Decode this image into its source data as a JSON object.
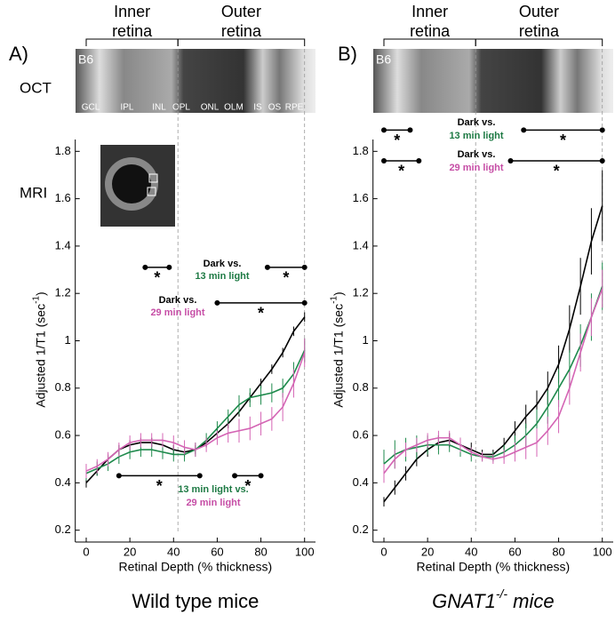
{
  "chart_data": [
    {
      "type": "line",
      "panel": "A)",
      "image_label": "B6",
      "region_labels": [
        [
          "Inner",
          "retina"
        ],
        [
          "Outer",
          "retina"
        ]
      ],
      "layer_labels": [
        "GCL",
        "IPL",
        "INL",
        "OPL",
        "ONL",
        "OLM",
        "IS",
        "OS",
        "RPE"
      ],
      "x_label": "Retinal Depth (% thickness)",
      "y_label": "Adjusted 1/T1 (sec",
      "y_label_sup": "-1",
      "y_label_end": ")",
      "title": "Wild type mice",
      "xlim": [
        -5,
        105
      ],
      "ylim": [
        0.15,
        1.85
      ],
      "xticks": [
        0,
        20,
        40,
        60,
        80,
        100
      ],
      "yticks": [
        0.2,
        0.4,
        0.6,
        0.8,
        1.0,
        1.2,
        1.4,
        1.6,
        1.8
      ],
      "dashed_lines": [
        42,
        100
      ],
      "x": [
        0,
        5,
        10,
        15,
        20,
        25,
        30,
        35,
        40,
        45,
        50,
        55,
        60,
        65,
        70,
        75,
        80,
        85,
        90,
        95,
        100
      ],
      "series": [
        {
          "name": "Dark",
          "color": "#000000",
          "values": [
            0.4,
            0.45,
            0.5,
            0.54,
            0.56,
            0.57,
            0.57,
            0.56,
            0.54,
            0.53,
            0.54,
            0.57,
            0.61,
            0.65,
            0.7,
            0.76,
            0.82,
            0.88,
            0.95,
            1.04,
            1.1
          ],
          "errors": [
            0.02,
            0.02,
            0.02,
            0.02,
            0.02,
            0.02,
            0.02,
            0.02,
            0.02,
            0.02,
            0.02,
            0.02,
            0.02,
            0.02,
            0.02,
            0.02,
            0.02,
            0.02,
            0.02,
            0.02,
            0.02
          ]
        },
        {
          "name": "13 min light",
          "color": "#1e8a4c",
          "values": [
            0.44,
            0.46,
            0.48,
            0.51,
            0.53,
            0.54,
            0.54,
            0.53,
            0.52,
            0.52,
            0.54,
            0.58,
            0.63,
            0.68,
            0.73,
            0.76,
            0.77,
            0.78,
            0.8,
            0.86,
            0.96
          ],
          "errors": [
            0.03,
            0.03,
            0.03,
            0.03,
            0.03,
            0.03,
            0.03,
            0.03,
            0.03,
            0.03,
            0.03,
            0.03,
            0.03,
            0.03,
            0.04,
            0.04,
            0.04,
            0.04,
            0.04,
            0.05,
            0.05
          ]
        },
        {
          "name": "29 min light",
          "color": "#d464b4",
          "values": [
            0.45,
            0.47,
            0.5,
            0.54,
            0.57,
            0.58,
            0.58,
            0.58,
            0.57,
            0.55,
            0.54,
            0.56,
            0.59,
            0.61,
            0.62,
            0.63,
            0.65,
            0.67,
            0.72,
            0.82,
            0.95
          ],
          "errors": [
            0.03,
            0.03,
            0.03,
            0.03,
            0.03,
            0.03,
            0.03,
            0.03,
            0.03,
            0.03,
            0.03,
            0.03,
            0.03,
            0.04,
            0.05,
            0.05,
            0.05,
            0.05,
            0.06,
            0.06,
            0.06
          ]
        }
      ],
      "brackets": [
        {
          "x": [
            27,
            38
          ],
          "y": 1.31,
          "label": "*"
        },
        {
          "x": [
            83,
            100
          ],
          "y": 1.31,
          "label": "*"
        },
        {
          "x": [
            60,
            100
          ],
          "y": 1.16,
          "label": "*"
        },
        {
          "x": [
            15,
            52
          ],
          "y": 0.43,
          "label": "*"
        },
        {
          "x": [
            68,
            80
          ],
          "y": 0.43,
          "label": "*"
        }
      ],
      "annotations": [
        {
          "lines": [
            "Dark vs.",
            "13 min light"
          ],
          "colors": [
            "#000000",
            "#1e7a44"
          ]
        },
        {
          "lines": [
            "Dark vs.",
            "29 min light"
          ],
          "colors": [
            "#000000",
            "#c64ea6"
          ]
        },
        {
          "lines": [
            "13 min light vs.",
            "29 min light"
          ],
          "colors": [
            "#1e7a44",
            "#c64ea6"
          ]
        }
      ]
    },
    {
      "type": "line",
      "panel": "B)",
      "image_label": "B6",
      "region_labels": [
        [
          "Inner",
          "retina"
        ],
        [
          "Outer",
          "retina"
        ]
      ],
      "x_label": "Retinal Depth (% thickness)",
      "y_label": "Adjusted 1/T1 (sec",
      "y_label_sup": "-1",
      "y_label_end": ")",
      "title": "GNAT1",
      "title_sup": "-/-",
      "title_end": " mice",
      "xlim": [
        -5,
        105
      ],
      "ylim": [
        0.15,
        1.85
      ],
      "xticks": [
        0,
        20,
        40,
        60,
        80,
        100
      ],
      "yticks": [
        0.2,
        0.4,
        0.6,
        0.8,
        1.0,
        1.2,
        1.4,
        1.6,
        1.8
      ],
      "dashed_lines": [
        42,
        100
      ],
      "x": [
        0,
        5,
        10,
        15,
        20,
        25,
        30,
        35,
        40,
        45,
        50,
        55,
        60,
        65,
        70,
        75,
        80,
        85,
        90,
        95,
        100
      ],
      "series": [
        {
          "name": "Dark",
          "color": "#000000",
          "values": [
            0.32,
            0.38,
            0.44,
            0.5,
            0.54,
            0.57,
            0.58,
            0.56,
            0.54,
            0.52,
            0.52,
            0.56,
            0.62,
            0.68,
            0.73,
            0.8,
            0.9,
            1.05,
            1.23,
            1.42,
            1.57
          ],
          "errors": [
            0.02,
            0.03,
            0.03,
            0.03,
            0.03,
            0.03,
            0.03,
            0.03,
            0.03,
            0.02,
            0.02,
            0.03,
            0.04,
            0.05,
            0.06,
            0.07,
            0.08,
            0.1,
            0.12,
            0.14,
            0.15
          ]
        },
        {
          "name": "13 min light",
          "color": "#1e8a4c",
          "values": [
            0.48,
            0.52,
            0.54,
            0.55,
            0.56,
            0.56,
            0.56,
            0.54,
            0.52,
            0.51,
            0.51,
            0.53,
            0.56,
            0.6,
            0.65,
            0.72,
            0.8,
            0.88,
            0.98,
            1.1,
            1.23
          ],
          "errors": [
            0.06,
            0.06,
            0.05,
            0.05,
            0.04,
            0.04,
            0.03,
            0.03,
            0.03,
            0.02,
            0.02,
            0.03,
            0.04,
            0.05,
            0.06,
            0.07,
            0.08,
            0.08,
            0.09,
            0.1,
            0.1
          ]
        },
        {
          "name": "29 min light",
          "color": "#d464b4",
          "values": [
            0.44,
            0.5,
            0.54,
            0.56,
            0.58,
            0.59,
            0.59,
            0.56,
            0.53,
            0.51,
            0.5,
            0.51,
            0.53,
            0.55,
            0.57,
            0.62,
            0.68,
            0.8,
            0.95,
            1.1,
            1.22
          ],
          "errors": [
            0.04,
            0.04,
            0.03,
            0.03,
            0.03,
            0.03,
            0.03,
            0.03,
            0.02,
            0.02,
            0.02,
            0.03,
            0.04,
            0.05,
            0.06,
            0.06,
            0.07,
            0.07,
            0.08,
            0.08,
            0.08
          ]
        }
      ],
      "brackets": [
        {
          "x": [
            0,
            12
          ],
          "y": 1.89,
          "label": "*"
        },
        {
          "x": [
            64,
            100
          ],
          "y": 1.89,
          "label": "*"
        },
        {
          "x": [
            0,
            16
          ],
          "y": 1.76,
          "label": "*"
        },
        {
          "x": [
            58,
            100
          ],
          "y": 1.76,
          "label": "*"
        }
      ],
      "annotations": [
        {
          "lines": [
            "Dark vs.",
            "13 min light"
          ],
          "colors": [
            "#000000",
            "#1e7a44"
          ]
        },
        {
          "lines": [
            "Dark vs.",
            "29 min light"
          ],
          "colors": [
            "#000000",
            "#c64ea6"
          ]
        }
      ]
    }
  ],
  "row_labels": {
    "oct": "OCT",
    "mri": "MRI"
  }
}
